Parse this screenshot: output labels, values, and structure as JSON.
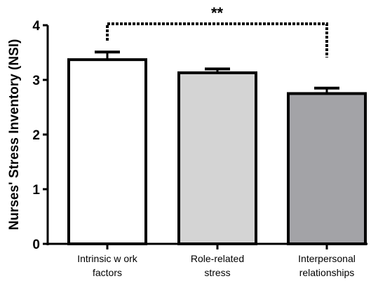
{
  "chart_data": {
    "type": "bar",
    "title": "",
    "xlabel": "",
    "ylabel": "Nurses' Stress Inventory (NSI)",
    "ylim": [
      0,
      4
    ],
    "yticks": [
      "0",
      "1",
      "2",
      "3",
      "4"
    ],
    "categories": [
      [
        "Intrinsic w ork",
        "factors"
      ],
      [
        "Role-related",
        "stress"
      ],
      [
        "Interpersonal",
        "relationships"
      ]
    ],
    "values": [
      3.37,
      3.13,
      2.75
    ],
    "errors": [
      0.14,
      0.07,
      0.1
    ],
    "bar_colors": [
      "#ffffff",
      "#d4d4d4",
      "#a3a3a7"
    ],
    "grid": false,
    "legend": "none",
    "significance": {
      "from_category": 0,
      "to_category": 2,
      "label": "**"
    }
  }
}
